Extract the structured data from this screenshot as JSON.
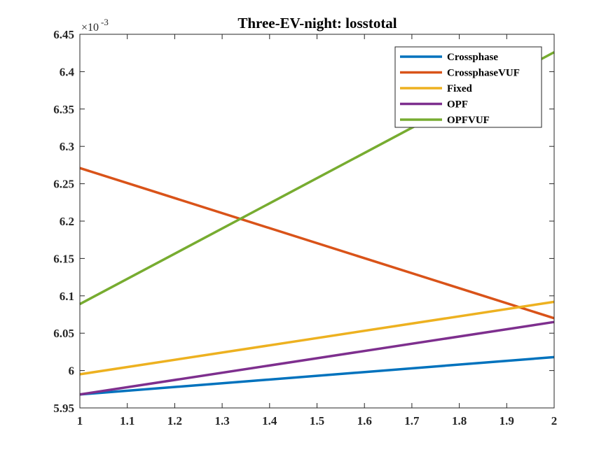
{
  "chart_data": {
    "type": "line",
    "title": "Three-EV-night: losstotal",
    "xlabel": "",
    "ylabel": "",
    "x": [
      1,
      2
    ],
    "xlim": [
      1,
      2
    ],
    "ylim": [
      5.95,
      6.45
    ],
    "xticks": [
      "1",
      "1.1",
      "1.2",
      "1.3",
      "1.4",
      "1.5",
      "1.6",
      "1.7",
      "1.8",
      "1.9",
      "2"
    ],
    "yticks": [
      "5.95",
      "6",
      "6.05",
      "6.1",
      "6.15",
      "6.2",
      "6.25",
      "6.3",
      "6.35",
      "6.4",
      "6.45"
    ],
    "y_exponent_base": "×10",
    "y_exponent_power": "-3",
    "grid": false,
    "legend_position": "top-right",
    "series": [
      {
        "name": "Crossphase",
        "values": [
          5.968,
          6.018
        ],
        "color": "#0072BD"
      },
      {
        "name": "CrossphaseVUF",
        "values": [
          6.271,
          6.07
        ],
        "color": "#D95319"
      },
      {
        "name": "Fixed",
        "values": [
          5.995,
          6.092
        ],
        "color": "#EDB120"
      },
      {
        "name": "OPF",
        "values": [
          5.968,
          6.065
        ],
        "color": "#7E2F8E"
      },
      {
        "name": "OPFVUF",
        "values": [
          6.089,
          6.426
        ],
        "color": "#77AC30"
      }
    ]
  }
}
